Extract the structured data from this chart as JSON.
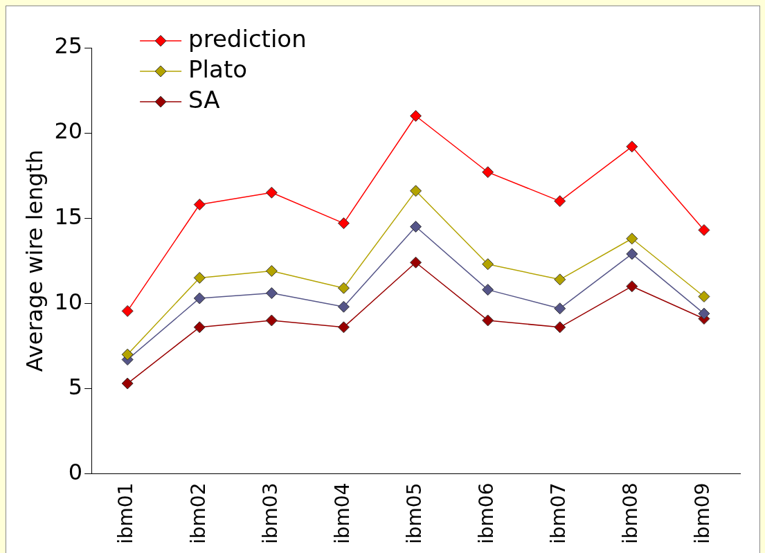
{
  "chart_data": {
    "type": "line",
    "ylabel": "Average wire length",
    "categories": [
      "ibm01",
      "ibm02",
      "ibm03",
      "ibm04",
      "ibm05",
      "ibm06",
      "ibm07",
      "ibm08",
      "ibm09"
    ],
    "series": [
      {
        "name": "prediction",
        "color": "#ff0000",
        "values": [
          9.55,
          15.8,
          16.5,
          14.7,
          21.0,
          17.7,
          16.0,
          19.2,
          14.3
        ]
      },
      {
        "name": "Plato",
        "color": "#b3a300",
        "values": [
          7.0,
          11.5,
          11.9,
          10.9,
          16.6,
          12.3,
          11.4,
          13.8,
          10.4
        ]
      },
      {
        "color": "#555588",
        "values": [
          6.7,
          10.3,
          10.6,
          9.8,
          14.5,
          10.8,
          9.7,
          12.9,
          9.4
        ]
      },
      {
        "name": "SA",
        "color": "#990000",
        "values": [
          5.3,
          8.6,
          9.0,
          8.6,
          12.4,
          9.0,
          8.6,
          11.0,
          9.1
        ]
      }
    ],
    "ylim": [
      0,
      25
    ],
    "yticks": [
      0,
      5,
      10,
      15,
      20,
      25
    ],
    "grid": false,
    "legend": "top left",
    "marker": "diamond",
    "line_style": "solid"
  }
}
